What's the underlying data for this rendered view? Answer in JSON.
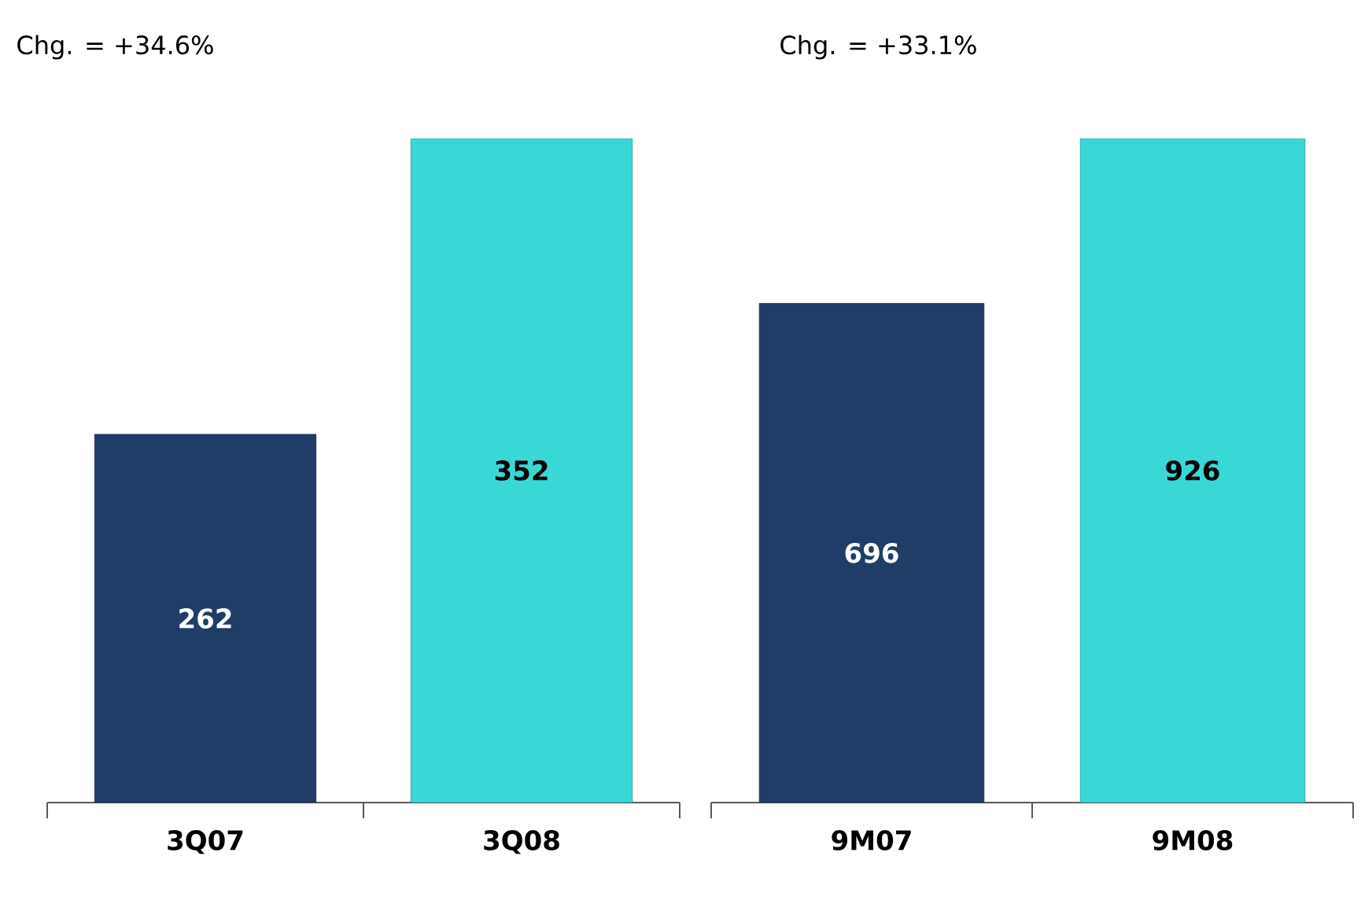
{
  "chart_data": [
    {
      "type": "bar",
      "title": "Chg. = +34.6%",
      "categories": [
        "3Q07",
        "3Q08"
      ],
      "values": [
        262,
        352
      ],
      "colors": [
        "#1f3d66",
        "#3ad7d7"
      ],
      "ylim": [
        150,
        352
      ],
      "data_labels": true,
      "tick_labels": "x"
    },
    {
      "type": "bar",
      "title": "Chg. = +33.1%",
      "categories": [
        "9M07",
        "9M08"
      ],
      "values": [
        696,
        926
      ],
      "colors": [
        "#1f3d66",
        "#3ad7d7"
      ],
      "ylim": [
        0,
        926
      ],
      "data_labels": true,
      "tick_labels": "x"
    }
  ]
}
